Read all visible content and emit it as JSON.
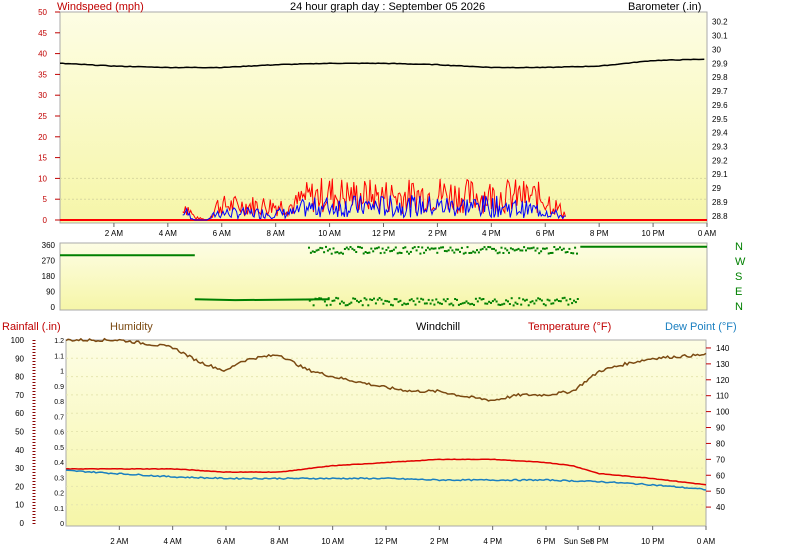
{
  "header": {
    "title": "24 hour graph day : September 05 2026",
    "left_label": "Windspeed (mph)",
    "right_label": "Barometer (.in)"
  },
  "time_ticks": [
    "2 AM",
    "4 AM",
    "6 AM",
    "8 AM",
    "10 AM",
    "12 PM",
    "2 PM",
    "4 PM",
    "6 PM",
    "8 PM",
    "10 PM",
    "0 AM"
  ],
  "bottom_time_ticks": [
    "2 AM",
    "4 AM",
    "6 AM",
    "8 AM",
    "10 AM",
    "12 PM",
    "2 PM",
    "4 PM",
    "6 PM",
    "Sun Set",
    "8 PM",
    "10 PM",
    "0 AM"
  ],
  "direction_labels": [
    "N",
    "W",
    "S",
    "E",
    "N"
  ],
  "bottom_headers": {
    "rainfall": "Rainfall (.in)",
    "humidity": "Humidity",
    "windchill": "Windchill",
    "temperature": "Temperature (°F)",
    "dewpoint": "Dew Point (°F)"
  },
  "colors": {
    "plot_bg_top": "#fdfde4",
    "plot_bg_bottom": "#f6f6a8",
    "barometer": "#000000",
    "wind_gust": "#ff0000",
    "wind_speed": "#0000ff",
    "direction": "#008000",
    "humidity": "#7b4a12",
    "temperature": "#e00000",
    "dewpoint": "#1a7fc0",
    "rain": "#8b0000",
    "label_red": "#c00000",
    "label_brown": "#7b4a12",
    "label_blue": "#1a7fc0"
  },
  "chart_data": [
    {
      "type": "line",
      "name": "windspeed-barometer",
      "x_unit": "hour",
      "y_left": {
        "label": "Windspeed (mph)",
        "ticks": [
          "0",
          "5",
          "10",
          "15",
          "20",
          "25",
          "30",
          "35",
          "40",
          "45",
          "50"
        ],
        "range": [
          0,
          50
        ]
      },
      "y_right": {
        "label": "Barometer (.in)",
        "ticks": [
          "28.8",
          "28.9",
          "29",
          "29.1",
          "29.2",
          "29.3",
          "29.4",
          "29.5",
          "29.6",
          "29.7",
          "29.8",
          "29.9",
          "30",
          "30.1",
          "30.2"
        ],
        "range": [
          28.77,
          30.27
        ]
      },
      "barometer": {
        "x": [
          0,
          2,
          4,
          6,
          8,
          10,
          12,
          14,
          16,
          18,
          20,
          22,
          24
        ],
        "y": [
          29.9,
          29.88,
          29.87,
          29.87,
          29.89,
          29.9,
          29.9,
          29.89,
          29.87,
          29.87,
          29.88,
          29.92,
          29.93
        ]
      },
      "wind_envelope": {
        "x": [
          0,
          4.5,
          4.6,
          5,
          5.5,
          5.8,
          8.7,
          9,
          10,
          11,
          12,
          13,
          14,
          15,
          16,
          17,
          18,
          18.8,
          19,
          24
        ],
        "gust_max": [
          0,
          0,
          7,
          1,
          0,
          6,
          6,
          9,
          11,
          10,
          10,
          10,
          11,
          10,
          10,
          10,
          9,
          2,
          0,
          0
        ],
        "speed_max": [
          0,
          0,
          4,
          0,
          0,
          3,
          3,
          5,
          6,
          6,
          6,
          6,
          6,
          6,
          6,
          5,
          4,
          1,
          0,
          0
        ]
      }
    },
    {
      "type": "scatter",
      "name": "wind-direction",
      "y_ticks": [
        "0",
        "45",
        "90",
        "135",
        "180",
        "225",
        "270",
        "315",
        "360"
      ],
      "range": [
        0,
        360
      ],
      "segments": [
        {
          "x": [
            0,
            5
          ],
          "y": [
            300,
            300
          ]
        },
        {
          "x": [
            5,
            6.5,
            10
          ],
          "y": [
            45,
            40,
            45
          ]
        },
        {
          "x": [
            19.3,
            24
          ],
          "y": [
            350,
            350
          ]
        }
      ]
    },
    {
      "type": "line",
      "name": "humidity-temperature",
      "y_left_rain": {
        "label": "Rainfall (.in)",
        "ticks": [
          "0",
          "0.1",
          "0.2",
          "0.3",
          "0.4",
          "0.5",
          "0.6",
          "0.7",
          "0.8",
          "0.9",
          "1",
          "1.1",
          "1.2"
        ],
        "range": [
          0,
          1.2
        ]
      },
      "y_left_humidity": {
        "label": "Humidity",
        "ticks": [
          "0",
          "10",
          "20",
          "30",
          "40",
          "50",
          "60",
          "70",
          "80",
          "90",
          "100"
        ],
        "range": [
          0,
          100
        ]
      },
      "y_right_temp": {
        "label": "Temperature (°F)",
        "ticks": [
          "40",
          "50",
          "60",
          "70",
          "80",
          "90",
          "100",
          "110",
          "120",
          "130",
          "140"
        ],
        "range": [
          30,
          145
        ]
      },
      "humidity": {
        "x": [
          0,
          1,
          2,
          3,
          4,
          5,
          6,
          6.5,
          7,
          8,
          9,
          10,
          11,
          12,
          13,
          14,
          15,
          16,
          17,
          18,
          19,
          20,
          21,
          22,
          23,
          24
        ],
        "y": [
          100,
          100,
          100,
          98,
          96,
          88,
          83,
          88,
          90,
          92,
          84,
          80,
          77,
          74,
          72,
          72,
          69,
          67,
          70,
          70,
          72,
          83,
          87,
          90,
          91,
          92
        ]
      },
      "temperature": {
        "x": [
          0,
          2,
          4,
          6,
          8,
          10,
          12,
          14,
          16,
          18,
          19,
          20,
          22,
          24
        ],
        "y": [
          64,
          64,
          64,
          62,
          62,
          66,
          68,
          70,
          70,
          68,
          66,
          61,
          58,
          54
        ]
      },
      "dewpoint": {
        "x": [
          0,
          2,
          4,
          6,
          8,
          10,
          12,
          14,
          16,
          18,
          20,
          22,
          24
        ],
        "y": [
          63,
          61,
          59,
          58,
          58,
          58,
          58,
          57,
          57,
          57,
          56,
          54,
          51
        ]
      }
    }
  ]
}
